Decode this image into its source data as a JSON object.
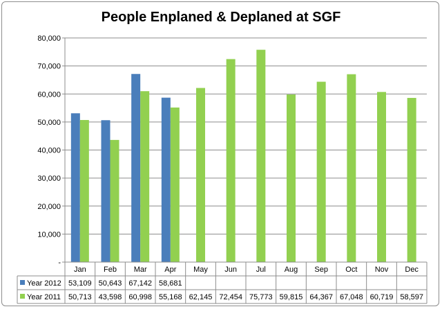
{
  "chart_data": {
    "type": "bar",
    "title": "People Enplaned & Deplaned at SGF",
    "categories": [
      "Jan",
      "Feb",
      "Mar",
      "Apr",
      "May",
      "Jun",
      "Jul",
      "Aug",
      "Sep",
      "Oct",
      "Nov",
      "Dec"
    ],
    "ylim": [
      0,
      80000
    ],
    "yticks": [
      "-",
      "10,000",
      "20,000",
      "30,000",
      "40,000",
      "50,000",
      "60,000",
      "70,000",
      "80,000"
    ],
    "grid": true,
    "legend": "data-table",
    "series": [
      {
        "name": "Year 2012",
        "color": "#4a7ebb",
        "values": [
          53109,
          50643,
          67142,
          58681,
          null,
          null,
          null,
          null,
          null,
          null,
          null,
          null
        ],
        "labels": [
          "53,109",
          "50,643",
          "67,142",
          "58,681",
          "",
          "",
          "",
          "",
          "",
          "",
          "",
          ""
        ]
      },
      {
        "name": "Year 2011",
        "color": "#92d050",
        "values": [
          50713,
          43598,
          60998,
          55168,
          62145,
          72454,
          75773,
          59815,
          64367,
          67048,
          60719,
          58597
        ],
        "labels": [
          "50,713",
          "43,598",
          "60,998",
          "55,168",
          "62,145",
          "72,454",
          "75,773",
          "59,815",
          "64,367",
          "67,048",
          "60,719",
          "58,597"
        ]
      }
    ]
  }
}
